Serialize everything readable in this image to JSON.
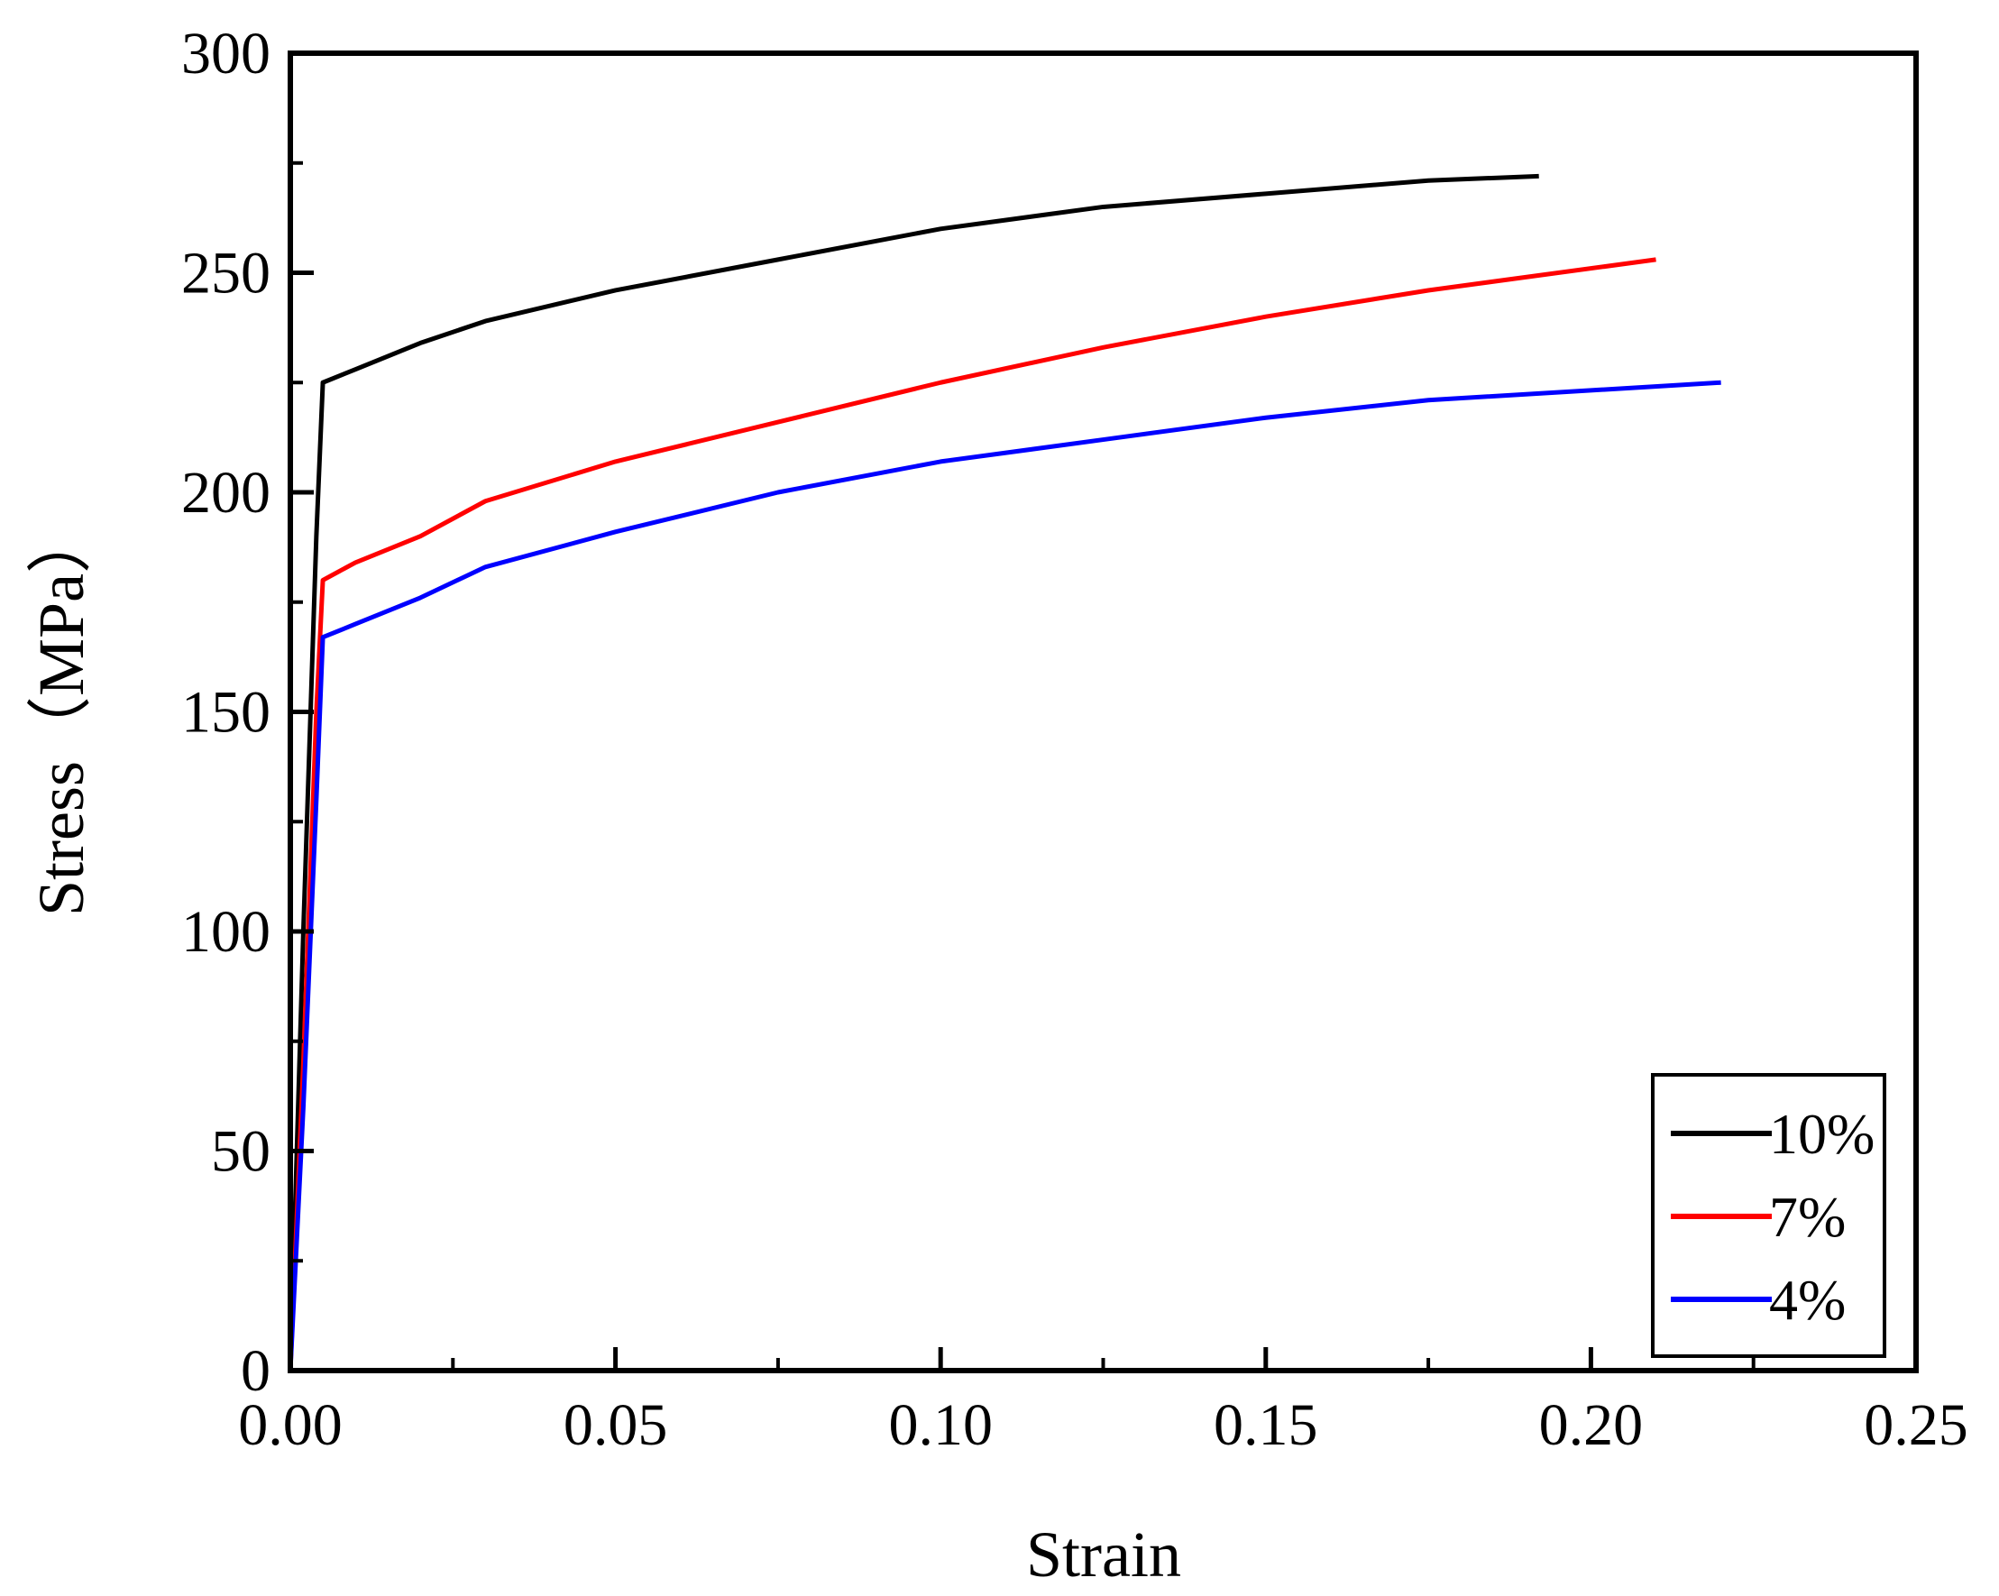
{
  "chart_data": {
    "type": "line",
    "xlabel": "Strain",
    "ylabel": "Stress（MPa）",
    "xlim": [
      0,
      0.25
    ],
    "ylim": [
      0,
      300
    ],
    "xticks": [
      "0.00",
      "0.05",
      "0.10",
      "0.15",
      "0.20",
      "0.25"
    ],
    "yticks": [
      "0",
      "50",
      "100",
      "150",
      "200",
      "250",
      "300"
    ],
    "grid": false,
    "legend_position": "bottom-right",
    "series": [
      {
        "name": "10%",
        "color": "#000000",
        "x": [
          0,
          0.002,
          0.004,
          0.005,
          0.01,
          0.02,
          0.03,
          0.05,
          0.075,
          0.1,
          0.125,
          0.15,
          0.175,
          0.192
        ],
        "y": [
          0,
          100,
          190,
          225,
          228,
          234,
          239,
          246,
          253,
          260,
          265,
          268,
          271,
          272
        ]
      },
      {
        "name": "7%",
        "color": "#ff0000",
        "x": [
          0,
          0.002,
          0.004,
          0.005,
          0.01,
          0.02,
          0.03,
          0.05,
          0.075,
          0.1,
          0.125,
          0.15,
          0.175,
          0.21
        ],
        "y": [
          0,
          70,
          150,
          180,
          184,
          190,
          198,
          207,
          216,
          225,
          233,
          240,
          246,
          253
        ]
      },
      {
        "name": "4%",
        "color": "#0000ff",
        "x": [
          0,
          0.002,
          0.004,
          0.005,
          0.01,
          0.02,
          0.03,
          0.05,
          0.075,
          0.1,
          0.125,
          0.15,
          0.175,
          0.22
        ],
        "y": [
          0,
          60,
          130,
          167,
          170,
          176,
          183,
          191,
          200,
          207,
          212,
          217,
          221,
          225
        ]
      }
    ]
  }
}
